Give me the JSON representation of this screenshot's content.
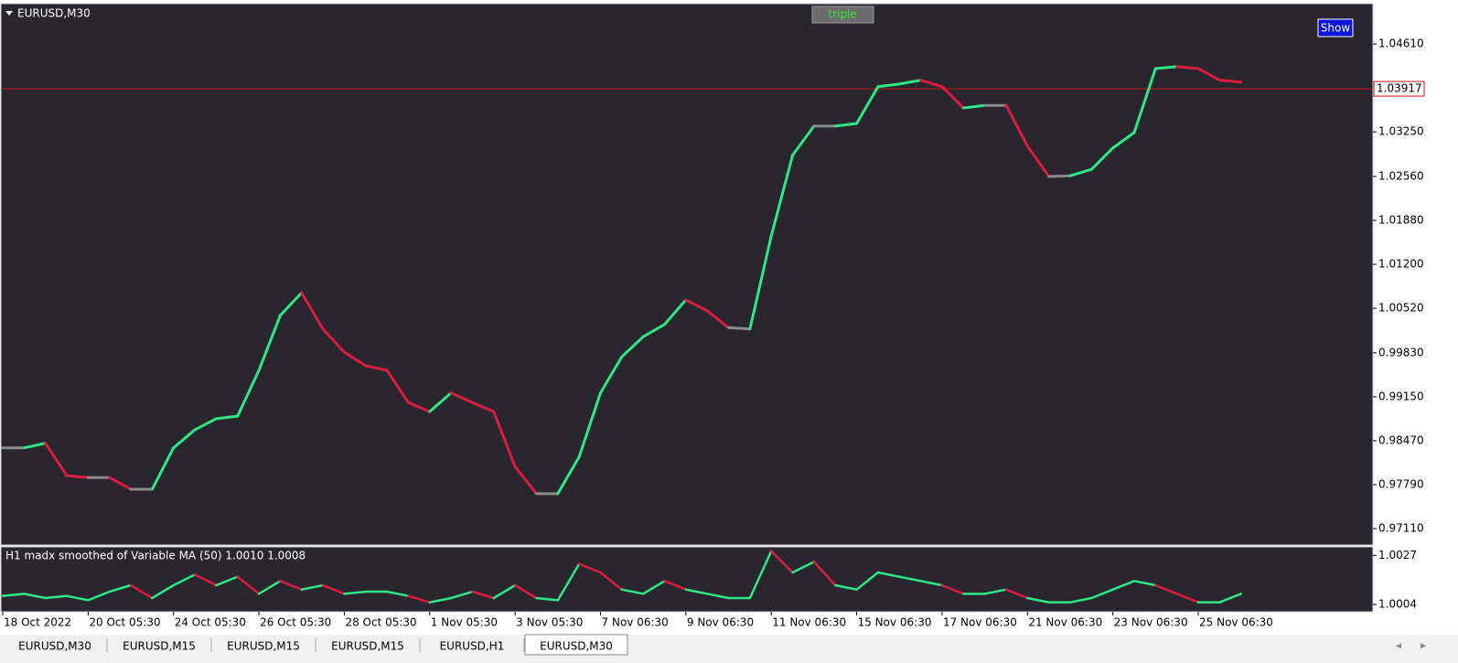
{
  "window": {
    "symbol": "EURUSD,M30",
    "button_triple": "triple",
    "button_show": "Show",
    "tabs": [
      "EURUSD,M30",
      "EURUSD,M15",
      "EURUSD,M15",
      "EURUSD,M15",
      "EURUSD,H1",
      "EURUSD,M30"
    ]
  },
  "chart_data": [
    {
      "type": "line",
      "categories": [
        "18 Oct 2022",
        null,
        null,
        null,
        "20 Oct 05:30",
        null,
        null,
        null,
        "24 Oct 05:30",
        null,
        null,
        null,
        "26 Oct 05:30",
        null,
        null,
        null,
        "28 Oct 05:30",
        null,
        null,
        null,
        "1 Nov 05:30",
        null,
        null,
        null,
        "3 Nov 05:30",
        null,
        null,
        null,
        "7 Nov 06:30",
        null,
        null,
        null,
        "9 Nov 06:30",
        null,
        null,
        null,
        "11 Nov 06:30",
        null,
        null,
        null,
        "15 Nov 06:30",
        null,
        null,
        null,
        "17 Nov 06:30",
        null,
        null,
        null,
        "21 Nov 06:30",
        null,
        null,
        null,
        "23 Nov 06:30",
        null,
        null,
        null,
        "25 Nov 06:30",
        null,
        null
      ],
      "series": [
        {
          "name": "Variable MA (50)",
          "up_color": "#2ee883",
          "down_color": "#dc1c3c",
          "flat_color": "#8a8a8a",
          "values": [
            0.9836,
            0.9836,
            0.9843,
            0.9793,
            0.979,
            0.979,
            0.9772,
            0.9772,
            0.9836,
            0.9864,
            0.9881,
            0.9885,
            0.9956,
            1.0041,
            1.0076,
            1.002,
            0.9984,
            0.9963,
            0.9956,
            0.9906,
            0.9892,
            0.9921,
            0.9906,
            0.9892,
            0.9807,
            0.9765,
            0.9765,
            0.9822,
            0.9921,
            0.9977,
            1.0008,
            1.0027,
            1.0065,
            1.0048,
            1.0022,
            1.002,
            1.0164,
            1.0289,
            1.0334,
            1.0334,
            1.0338,
            1.0395,
            1.0399,
            1.0405,
            1.0395,
            1.0362,
            1.0366,
            1.0366,
            1.0303,
            1.0256,
            1.0257,
            1.0267,
            1.03,
            1.0324,
            1.0423,
            1.0426,
            1.0423,
            1.0405,
            1.0402
          ]
        }
      ],
      "ylim": [
        0.9687,
        1.0522
      ],
      "yticks": [
        {
          "value": 1.0461,
          "label": "1.04610"
        },
        {
          "value": 1.0325,
          "label": "1.03250"
        },
        {
          "value": 1.0256,
          "label": "1.02560"
        },
        {
          "value": 1.0188,
          "label": "1.01880"
        },
        {
          "value": 1.012,
          "label": "1.01200"
        },
        {
          "value": 1.0052,
          "label": "1.00520"
        },
        {
          "value": 0.9983,
          "label": "0.99830"
        },
        {
          "value": 0.9915,
          "label": "0.99150"
        },
        {
          "value": 0.9847,
          "label": "0.98470"
        },
        {
          "value": 0.9779,
          "label": "0.97790"
        },
        {
          "value": 0.9711,
          "label": "0.97110"
        }
      ],
      "current_price": 1.03917,
      "price_line_color": "#c81414"
    },
    {
      "type": "line",
      "title": "H1 madx smoothed of   Variable MA (50) 1.0010 1.0008",
      "series": [
        {
          "name": "madx",
          "up_color": "#2ee883",
          "down_color": "#dc1c3c",
          "values": [
            1.0008,
            1.0009,
            1.0007,
            1.0008,
            1.0006,
            1.001,
            1.0013,
            1.0007,
            1.0013,
            1.0018,
            1.0013,
            1.0017,
            1.0009,
            1.0015,
            1.0011,
            1.0013,
            1.0009,
            1.001,
            1.001,
            1.0008,
            1.0005,
            1.0007,
            1.001,
            1.0007,
            1.0013,
            1.0007,
            1.0006,
            1.0023,
            1.0019,
            1.0011,
            1.0009,
            1.0015,
            1.0011,
            1.0009,
            1.0007,
            1.0007,
            1.0029,
            1.0019,
            1.0024,
            1.0013,
            1.0011,
            1.0019,
            1.0017,
            1.0015,
            1.0013,
            1.0009,
            1.0009,
            1.0011,
            1.0007,
            1.0005,
            1.0005,
            1.0007,
            1.0011,
            1.0015,
            1.0013,
            1.0009,
            1.0005,
            1.0005,
            1.0009
          ]
        }
      ],
      "ylim": [
        1.0001,
        1.0031
      ],
      "yticks": [
        1.0027,
        1.0004
      ]
    }
  ]
}
